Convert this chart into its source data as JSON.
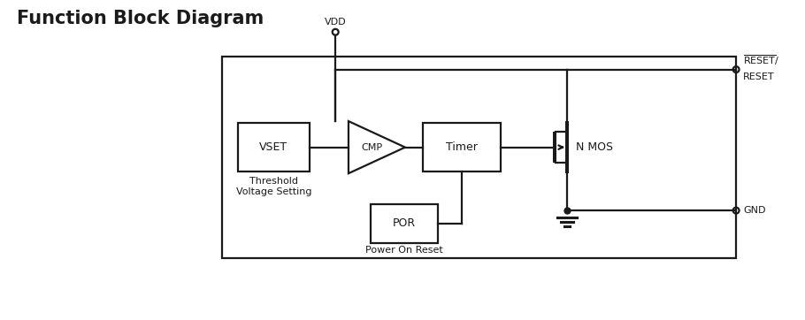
{
  "title": "Function Block Diagram",
  "title_fontsize": 15,
  "title_fontweight": "bold",
  "bg_color": "#ffffff",
  "line_color": "#1a1a1a",
  "lw": 1.6,
  "fig_width": 9.1,
  "fig_height": 3.62,
  "labels": {
    "vset": "VSET",
    "timer": "Timer",
    "por": "POR",
    "cmp": "CMP",
    "nmos": "N MOS",
    "vdd": "VDD",
    "gnd": "GND",
    "reset_bar": "RESET/",
    "reset": "RESET",
    "threshold": "Threshold\nVoltage Setting",
    "power_on_reset": "Power On Reset"
  },
  "font_sizes": {
    "block_label": 9,
    "pin_label": 8,
    "annotation": 8
  }
}
